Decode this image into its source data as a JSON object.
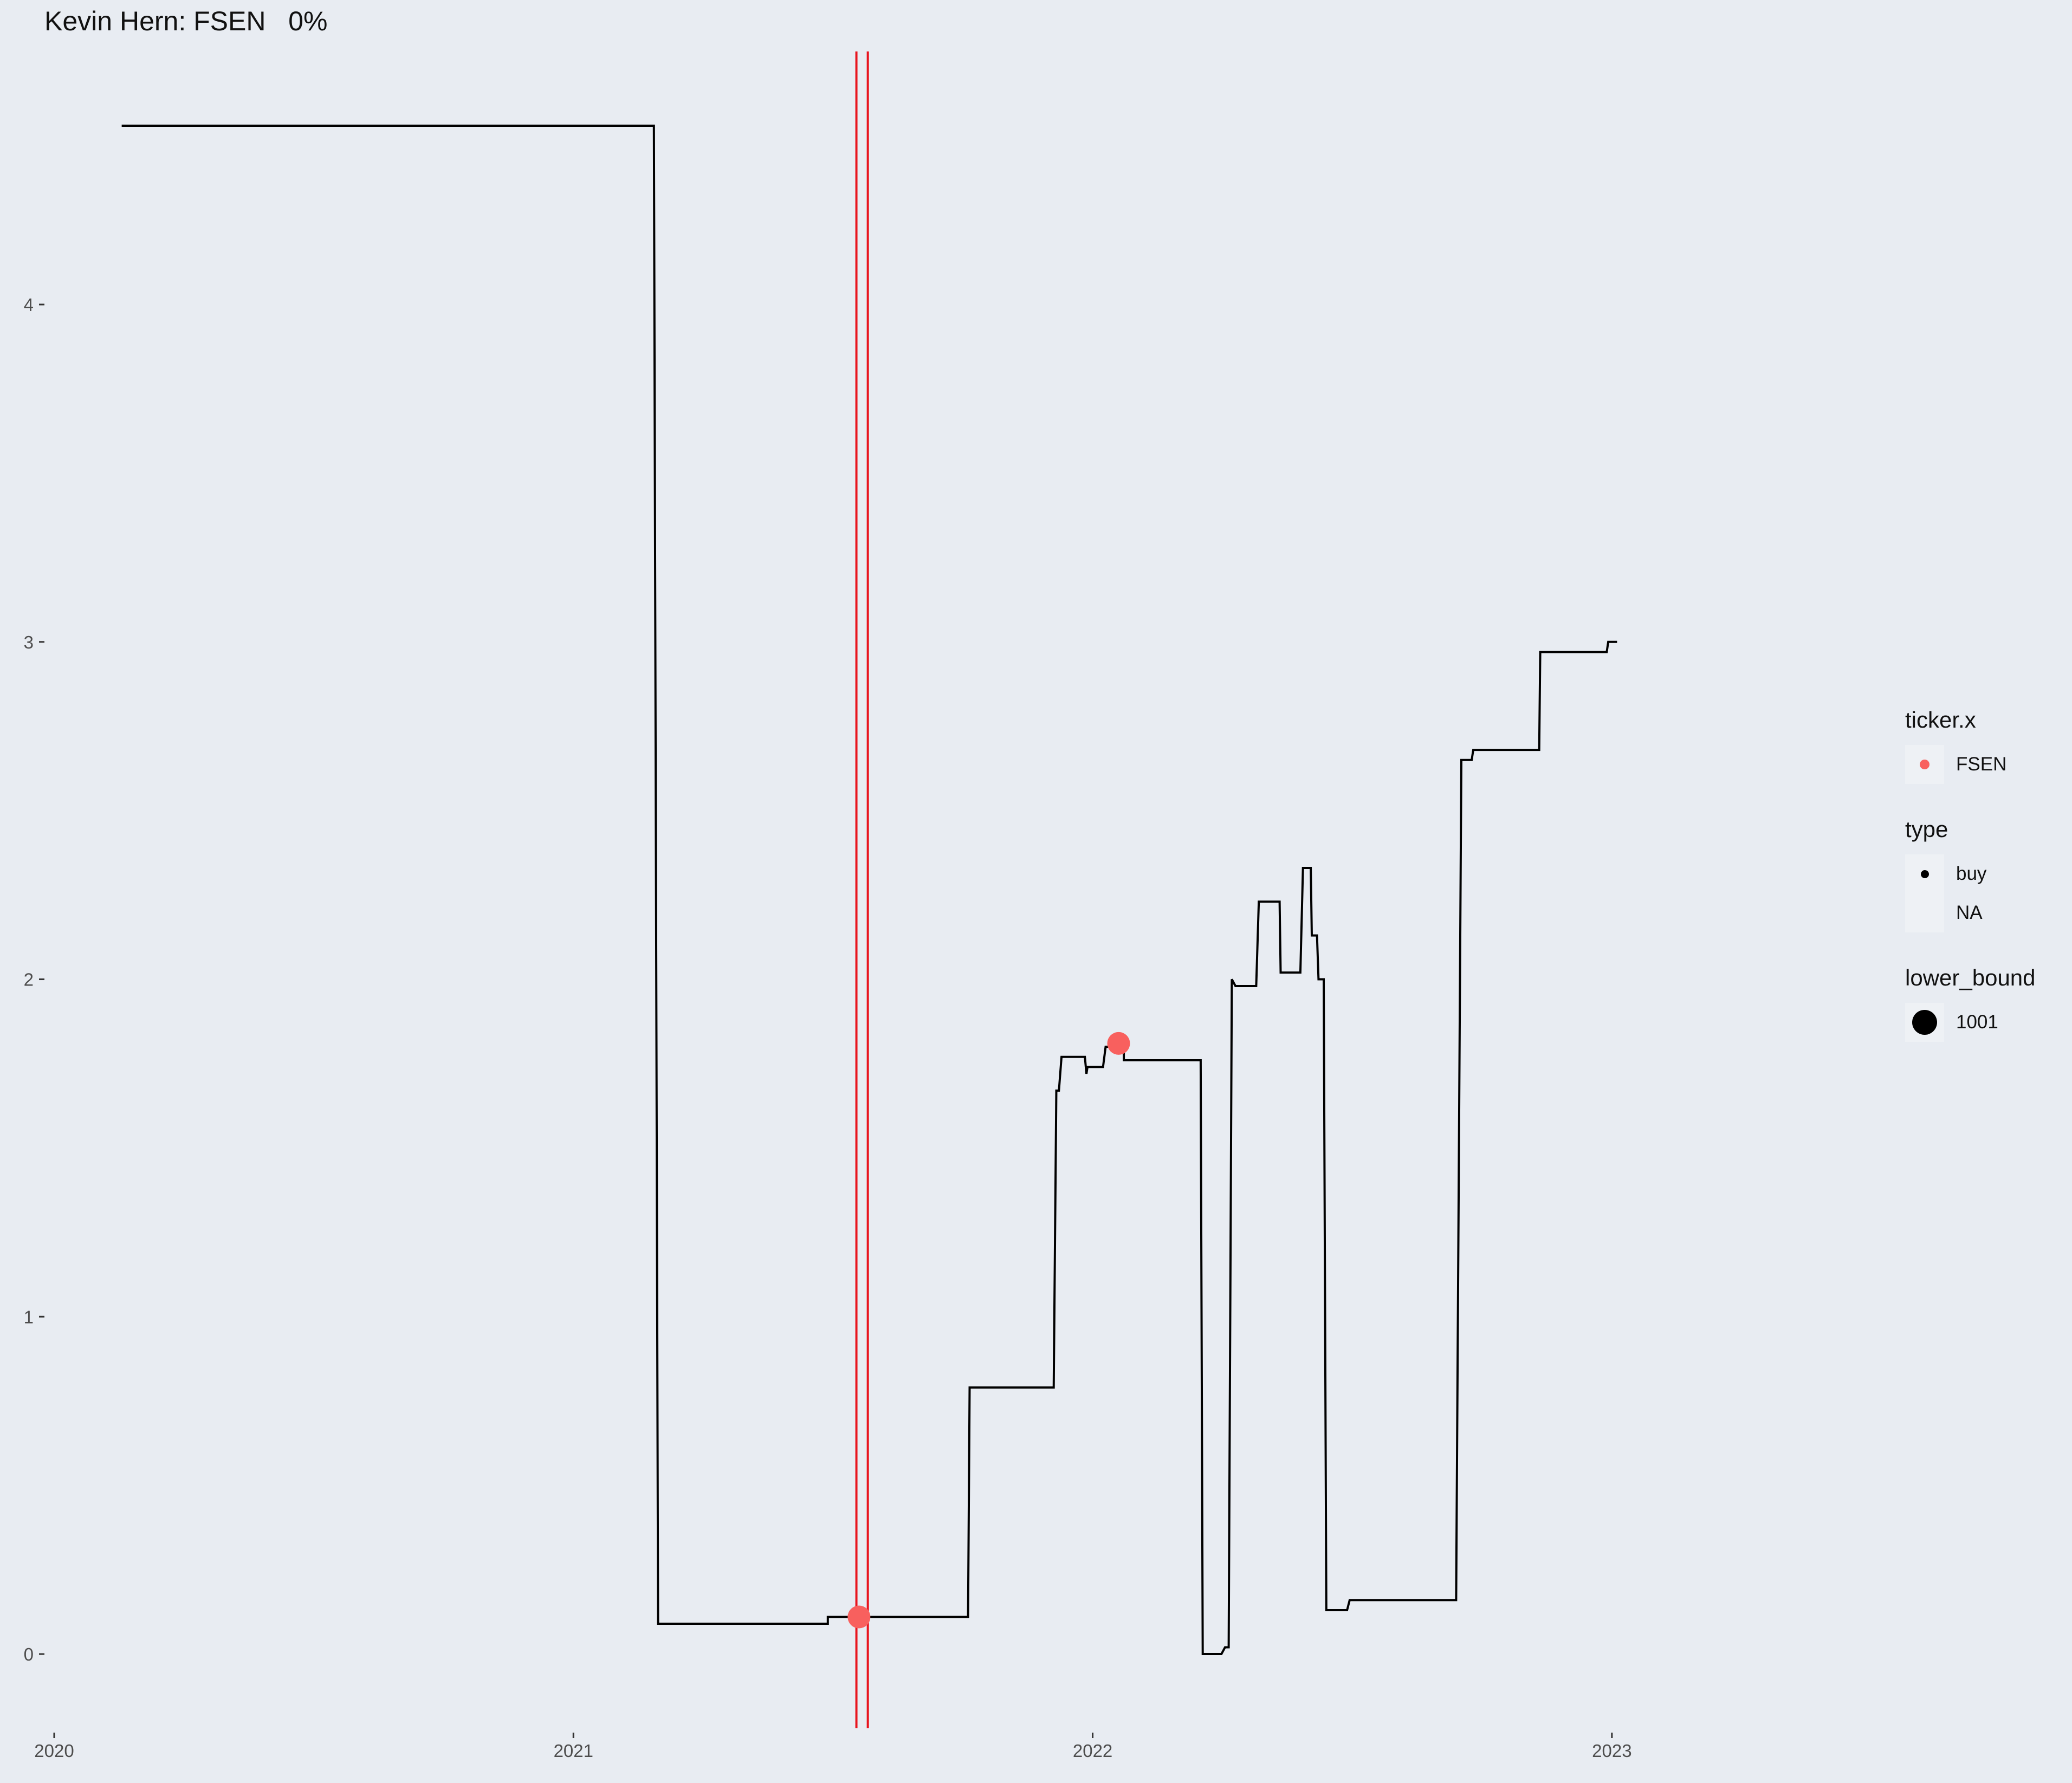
{
  "chart_data": {
    "type": "line",
    "title": "Kevin Hern: FSEN   0%",
    "xlabel": "",
    "ylabel": "",
    "x_ticks": [
      "2020",
      "2021",
      "2022",
      "2023"
    ],
    "y_ticks": [
      "0",
      "1",
      "2",
      "3",
      "4"
    ],
    "xlim": [
      2020.0,
      2023.5
    ],
    "ylim": [
      -0.22,
      4.75
    ],
    "grid": false,
    "line_color": "#000000",
    "vlines": [
      2021.545,
      2021.567
    ],
    "vline_color": "#e8141e",
    "series": [
      {
        "points": [
          [
            2020.13,
            4.53
          ],
          [
            2021.155,
            4.53
          ],
          [
            2021.163,
            0.09
          ],
          [
            2021.49,
            0.09
          ],
          [
            2021.49,
            0.11
          ],
          [
            2021.76,
            0.11
          ],
          [
            2021.763,
            0.79
          ],
          [
            2021.925,
            0.79
          ],
          [
            2021.93,
            1.67
          ],
          [
            2021.935,
            1.67
          ],
          [
            2021.94,
            1.77
          ],
          [
            2021.985,
            1.77
          ],
          [
            2021.988,
            1.72
          ],
          [
            2021.99,
            1.74
          ],
          [
            2022.02,
            1.74
          ],
          [
            2022.025,
            1.8
          ],
          [
            2022.06,
            1.8
          ],
          [
            2022.06,
            1.76
          ],
          [
            2022.208,
            1.76
          ],
          [
            2022.212,
            0.0
          ],
          [
            2022.248,
            0.0
          ],
          [
            2022.255,
            0.02
          ],
          [
            2022.262,
            0.02
          ],
          [
            2022.268,
            2.0
          ],
          [
            2022.275,
            1.98
          ],
          [
            2022.315,
            1.98
          ],
          [
            2022.32,
            2.23
          ],
          [
            2022.36,
            2.23
          ],
          [
            2022.362,
            2.02
          ],
          [
            2022.4,
            2.02
          ],
          [
            2022.405,
            2.33
          ],
          [
            2022.42,
            2.33
          ],
          [
            2022.422,
            2.13
          ],
          [
            2022.432,
            2.13
          ],
          [
            2022.435,
            2.0
          ],
          [
            2022.445,
            2.0
          ],
          [
            2022.45,
            0.13
          ],
          [
            2022.49,
            0.13
          ],
          [
            2022.495,
            0.16
          ],
          [
            2022.7,
            0.16
          ],
          [
            2022.71,
            2.65
          ],
          [
            2022.73,
            2.65
          ],
          [
            2022.733,
            2.68
          ],
          [
            2022.86,
            2.68
          ],
          [
            2022.862,
            2.97
          ],
          [
            2022.99,
            2.97
          ],
          [
            2022.993,
            3.0
          ],
          [
            2023.01,
            3.0
          ]
        ]
      }
    ],
    "markers": [
      {
        "x": 2021.55,
        "y": 0.11,
        "ticker": "FSEN",
        "type": "buy",
        "lower_bound": 1001
      },
      {
        "x": 2022.05,
        "y": 1.81,
        "ticker": "FSEN",
        "type": "buy",
        "lower_bound": 1001
      }
    ],
    "marker_color": "#f8605e",
    "legend": {
      "position": "right",
      "groups": [
        {
          "title": "ticker.x",
          "items": [
            {
              "label": "FSEN"
            }
          ]
        },
        {
          "title": "type",
          "items": [
            {
              "label": "buy"
            },
            {
              "label": "NA"
            }
          ]
        },
        {
          "title": "lower_bound",
          "items": [
            {
              "label": "1001"
            }
          ]
        }
      ]
    }
  }
}
